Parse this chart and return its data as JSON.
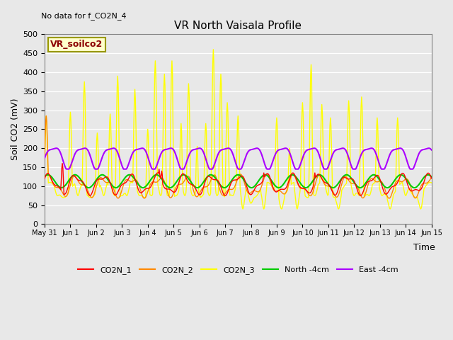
{
  "title": "VR North Vaisala Profile",
  "subtitle": "No data for f_CO2N_4",
  "box_label": "VR_soilco2",
  "ylabel": "Soil CO2 (mV)",
  "xlabel": "Time",
  "ylim": [
    0,
    500
  ],
  "yticks": [
    0,
    50,
    100,
    150,
    200,
    250,
    300,
    350,
    400,
    450,
    500
  ],
  "background_color": "#e8e8e8",
  "colors": {
    "CO2N_1": "#ff0000",
    "CO2N_2": "#ff8800",
    "CO2N_3": "#ffff00",
    "North_4cm": "#00cc00",
    "East_4cm": "#aa00ff"
  },
  "xtick_labels": [
    "May 31",
    "Jun 1",
    "Jun 2",
    "Jun 3",
    "Jun 4",
    "Jun 5",
    "Jun 6",
    "Jun 7",
    "Jun 8",
    "Jun 9",
    "Jun 10",
    "Jun 11",
    "Jun 12",
    "Jun 13",
    "Jun 14",
    "Jun 15"
  ]
}
